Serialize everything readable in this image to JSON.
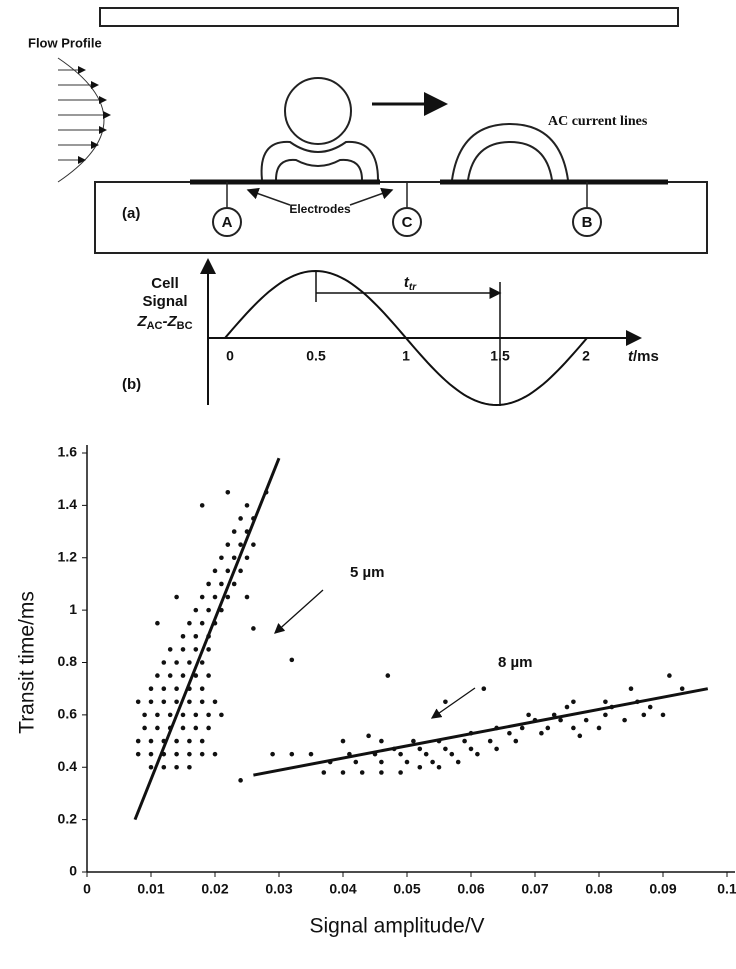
{
  "diagram": {
    "flow_label": "Flow Profile",
    "current_label": "AC current lines",
    "electrodes_label": "Electrodes",
    "panel_a": "(a)",
    "electrode_names": [
      "A",
      "C",
      "B"
    ],
    "panel_b": "(b)",
    "signal_label": [
      "Cell",
      "Signal"
    ],
    "signal_symbol": [
      "Z",
      "AC",
      "-Z",
      "BC"
    ],
    "time_ticks": [
      "0",
      "0.5",
      "1",
      "1.5",
      "2"
    ],
    "time_axis": [
      "t",
      "/ms"
    ],
    "transit_symbol": [
      "t",
      "tr"
    ]
  },
  "chart_data": {
    "type": "scatter",
    "x_label": "Signal amplitude/V",
    "y_label": "Transit time/ms",
    "xlim": [
      0,
      0.1
    ],
    "xticks": [
      0,
      0.01,
      0.02,
      0.03,
      0.04,
      0.05,
      0.06,
      0.07,
      0.08,
      0.09,
      0.1
    ],
    "ylim": [
      0,
      1.6
    ],
    "yticks": [
      0,
      0.2,
      0.4,
      0.6,
      0.8,
      1,
      1.2,
      1.4,
      1.6
    ],
    "grid": false,
    "series": [
      {
        "name": "5 µm",
        "color": "#111111",
        "x": [
          0.01,
          0.012,
          0.014,
          0.016,
          0.008,
          0.01,
          0.012,
          0.014,
          0.016,
          0.018,
          0.02,
          0.008,
          0.01,
          0.012,
          0.014,
          0.016,
          0.018,
          0.009,
          0.011,
          0.013,
          0.015,
          0.017,
          0.019,
          0.009,
          0.011,
          0.013,
          0.015,
          0.017,
          0.019,
          0.021,
          0.008,
          0.01,
          0.012,
          0.014,
          0.016,
          0.018,
          0.02,
          0.01,
          0.012,
          0.014,
          0.016,
          0.018,
          0.011,
          0.013,
          0.015,
          0.017,
          0.019,
          0.012,
          0.014,
          0.016,
          0.018,
          0.013,
          0.015,
          0.017,
          0.019,
          0.015,
          0.017,
          0.019,
          0.016,
          0.018,
          0.02,
          0.011,
          0.017,
          0.019,
          0.021,
          0.014,
          0.018,
          0.02,
          0.022,
          0.025,
          0.019,
          0.021,
          0.023,
          0.02,
          0.022,
          0.024,
          0.021,
          0.023,
          0.025,
          0.022,
          0.024,
          0.026,
          0.023,
          0.025,
          0.024,
          0.026,
          0.018,
          0.025,
          0.022,
          0.028,
          0.032,
          0.026,
          0.024
        ],
        "values": [
          0.4,
          0.4,
          0.4,
          0.4,
          0.45,
          0.45,
          0.45,
          0.45,
          0.45,
          0.45,
          0.45,
          0.5,
          0.5,
          0.5,
          0.5,
          0.5,
          0.5,
          0.55,
          0.55,
          0.55,
          0.55,
          0.55,
          0.55,
          0.6,
          0.6,
          0.6,
          0.6,
          0.6,
          0.6,
          0.6,
          0.65,
          0.65,
          0.65,
          0.65,
          0.65,
          0.65,
          0.65,
          0.7,
          0.7,
          0.7,
          0.7,
          0.7,
          0.75,
          0.75,
          0.75,
          0.75,
          0.75,
          0.8,
          0.8,
          0.8,
          0.8,
          0.85,
          0.85,
          0.85,
          0.85,
          0.9,
          0.9,
          0.9,
          0.95,
          0.95,
          0.95,
          0.95,
          1.0,
          1.0,
          1.0,
          1.05,
          1.05,
          1.05,
          1.05,
          1.05,
          1.1,
          1.1,
          1.1,
          1.15,
          1.15,
          1.15,
          1.2,
          1.2,
          1.2,
          1.25,
          1.25,
          1.25,
          1.3,
          1.3,
          1.35,
          1.35,
          1.4,
          1.4,
          1.45,
          1.45,
          0.81,
          0.93,
          0.35
        ],
        "fit": {
          "x": [
            0.0075,
            0.03
          ],
          "values": [
            0.2,
            1.58
          ]
        }
      },
      {
        "name": "8 µm",
        "color": "#111111",
        "x": [
          0.037,
          0.04,
          0.043,
          0.046,
          0.049,
          0.052,
          0.055,
          0.038,
          0.042,
          0.046,
          0.05,
          0.054,
          0.058,
          0.029,
          0.032,
          0.035,
          0.041,
          0.045,
          0.049,
          0.053,
          0.057,
          0.061,
          0.048,
          0.052,
          0.056,
          0.06,
          0.064,
          0.04,
          0.046,
          0.051,
          0.055,
          0.059,
          0.063,
          0.067,
          0.06,
          0.066,
          0.071,
          0.064,
          0.068,
          0.072,
          0.076,
          0.08,
          0.07,
          0.074,
          0.078,
          0.084,
          0.069,
          0.073,
          0.081,
          0.087,
          0.09,
          0.075,
          0.082,
          0.088,
          0.056,
          0.076,
          0.081,
          0.086,
          0.062,
          0.085,
          0.093,
          0.047,
          0.091,
          0.044,
          0.077
        ],
        "values": [
          0.38,
          0.38,
          0.38,
          0.38,
          0.38,
          0.4,
          0.4,
          0.42,
          0.42,
          0.42,
          0.42,
          0.42,
          0.42,
          0.45,
          0.45,
          0.45,
          0.45,
          0.45,
          0.45,
          0.45,
          0.45,
          0.45,
          0.47,
          0.47,
          0.47,
          0.47,
          0.47,
          0.5,
          0.5,
          0.5,
          0.5,
          0.5,
          0.5,
          0.5,
          0.53,
          0.53,
          0.53,
          0.55,
          0.55,
          0.55,
          0.55,
          0.55,
          0.58,
          0.58,
          0.58,
          0.58,
          0.6,
          0.6,
          0.6,
          0.6,
          0.6,
          0.63,
          0.63,
          0.63,
          0.65,
          0.65,
          0.65,
          0.65,
          0.7,
          0.7,
          0.7,
          0.75,
          0.75,
          0.52,
          0.52
        ],
        "fit": {
          "x": [
            0.026,
            0.097
          ],
          "values": [
            0.37,
            0.7
          ]
        }
      }
    ]
  }
}
